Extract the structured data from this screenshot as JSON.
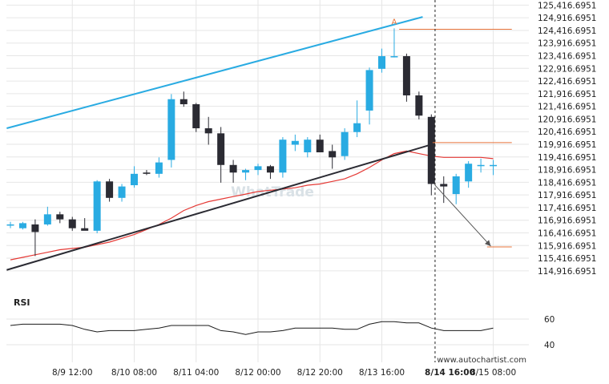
{
  "chart_data": {
    "type": "candlestick",
    "panel_label": "RSI",
    "watermark": "WhatTrade",
    "credit": "www.autochartist.com",
    "colors": {
      "bull": "#29abe2",
      "bear": "#2b2b33",
      "channel_top": "#29abe2",
      "channel_bottom": "#2b2b33",
      "moving_average": "#e53935",
      "level_lines": "#e8743b",
      "projection": "#555555",
      "grid": "#e6e6e6",
      "rsi": "#1a1a1a"
    },
    "y_axis": {
      "min": 114416.6951,
      "max": 125416.6951,
      "tick_labels": [
        "125,416.6951",
        "124,916.6951",
        "124,416.6951",
        "123,916.6951",
        "123,416.6951",
        "122,916.6951",
        "122,416.6951",
        "121,916.6951",
        "121,416.6951",
        "120,916.6951",
        "120,416.6951",
        "119,916.6951",
        "119,416.6951",
        "118,916.6951",
        "118,416.6951",
        "117,916.6951",
        "117,416.6951",
        "116,916.6951",
        "116,416.6951",
        "115,916.6951",
        "115,416.6951",
        "114,916.6951"
      ],
      "tick_values": [
        125416.6951,
        124916.6951,
        124416.6951,
        123916.6951,
        123416.6951,
        122916.6951,
        122416.6951,
        121916.6951,
        121416.6951,
        120916.6951,
        120416.6951,
        119916.6951,
        119416.6951,
        118916.6951,
        118416.6951,
        117916.6951,
        117416.6951,
        116916.6951,
        116416.6951,
        115916.6951,
        115416.6951,
        114916.6951
      ]
    },
    "x_axis": {
      "tick_labels": [
        "8/9 12:00",
        "8/10 08:00",
        "8/11 04:00",
        "8/12 00:00",
        "8/12 20:00",
        "8/13 16:00",
        "8/14 16:00",
        "8/15 08:00"
      ],
      "tick_index": [
        5,
        10,
        15,
        20,
        25,
        30,
        35.5,
        39
      ],
      "highlight_index": 6
    },
    "candles": [
      {
        "o": 116750,
        "h": 116850,
        "l": 116600,
        "c": 116750
      },
      {
        "o": 116600,
        "h": 116850,
        "l": 116550,
        "c": 116800
      },
      {
        "o": 116750,
        "h": 116950,
        "l": 115500,
        "c": 116450
      },
      {
        "o": 116750,
        "h": 117450,
        "l": 116700,
        "c": 117150
      },
      {
        "o": 117150,
        "h": 117250,
        "l": 116800,
        "c": 116950
      },
      {
        "o": 116950,
        "h": 117050,
        "l": 116500,
        "c": 116600
      },
      {
        "o": 116600,
        "h": 117000,
        "l": 116550,
        "c": 116500
      },
      {
        "o": 116500,
        "h": 118500,
        "l": 116400,
        "c": 118450
      },
      {
        "o": 118450,
        "h": 118550,
        "l": 117650,
        "c": 117800
      },
      {
        "o": 117800,
        "h": 118350,
        "l": 117650,
        "c": 118250
      },
      {
        "o": 118300,
        "h": 119050,
        "l": 118200,
        "c": 118750
      },
      {
        "o": 118800,
        "h": 118900,
        "l": 118700,
        "c": 118750
      },
      {
        "o": 118750,
        "h": 119400,
        "l": 118600,
        "c": 119200
      },
      {
        "o": 119300,
        "h": 121900,
        "l": 119000,
        "c": 121700
      },
      {
        "o": 121700,
        "h": 122000,
        "l": 121400,
        "c": 121500
      },
      {
        "o": 121500,
        "h": 121550,
        "l": 120400,
        "c": 120550
      },
      {
        "o": 120550,
        "h": 121000,
        "l": 119900,
        "c": 120350
      },
      {
        "o": 120350,
        "h": 120600,
        "l": 118400,
        "c": 119100
      },
      {
        "o": 119100,
        "h": 119300,
        "l": 118400,
        "c": 118800
      },
      {
        "o": 118800,
        "h": 118950,
        "l": 118500,
        "c": 118900
      },
      {
        "o": 118900,
        "h": 119150,
        "l": 118700,
        "c": 119050
      },
      {
        "o": 119050,
        "h": 119100,
        "l": 118550,
        "c": 118800
      },
      {
        "o": 118800,
        "h": 120200,
        "l": 118600,
        "c": 120100
      },
      {
        "o": 119900,
        "h": 120300,
        "l": 119650,
        "c": 120050
      },
      {
        "o": 119600,
        "h": 120200,
        "l": 119400,
        "c": 120100
      },
      {
        "o": 120100,
        "h": 120300,
        "l": 119600,
        "c": 119600
      },
      {
        "o": 119650,
        "h": 119900,
        "l": 118950,
        "c": 119400
      },
      {
        "o": 119450,
        "h": 120550,
        "l": 119300,
        "c": 120400
      },
      {
        "o": 120400,
        "h": 121650,
        "l": 120200,
        "c": 120750
      },
      {
        "o": 121250,
        "h": 122950,
        "l": 120700,
        "c": 122850
      },
      {
        "o": 122900,
        "h": 123700,
        "l": 122750,
        "c": 123400
      },
      {
        "o": 123400,
        "h": 124500,
        "l": 123350,
        "c": 123400
      },
      {
        "o": 123400,
        "h": 123500,
        "l": 121600,
        "c": 121850
      },
      {
        "o": 121850,
        "h": 122000,
        "l": 120900,
        "c": 121050
      },
      {
        "o": 121000,
        "h": 121100,
        "l": 117900,
        "c": 118350
      },
      {
        "o": 118350,
        "h": 118650,
        "l": 117600,
        "c": 118250
      },
      {
        "o": 117950,
        "h": 118750,
        "l": 117550,
        "c": 118650
      },
      {
        "o": 118450,
        "h": 119250,
        "l": 118200,
        "c": 119150
      },
      {
        "o": 119100,
        "h": 119350,
        "l": 118800,
        "c": 119100
      },
      {
        "o": 119100,
        "h": 119300,
        "l": 118700,
        "c": 119100
      }
    ],
    "moving_average": [
      115350,
      115450,
      115550,
      115650,
      115750,
      115800,
      115850,
      115950,
      116050,
      116200,
      116350,
      116550,
      116750,
      117000,
      117300,
      117500,
      117650,
      117750,
      117850,
      117950,
      118050,
      118100,
      118150,
      118200,
      118300,
      118350,
      118450,
      118550,
      118750,
      119000,
      119300,
      119550,
      119650,
      119550,
      119450,
      119400,
      119400,
      119400,
      119400,
      119350
    ],
    "rsi": {
      "axis_labels": [
        "60",
        "40"
      ],
      "axis_values": [
        60,
        40
      ],
      "min": 30,
      "max": 70,
      "values": [
        55,
        56,
        56,
        56,
        56,
        55,
        52,
        50,
        51,
        51,
        51,
        52,
        53,
        55,
        55,
        55,
        55,
        51,
        50,
        48,
        50,
        50,
        51,
        53,
        53,
        53,
        53,
        52,
        52,
        56,
        58,
        58,
        57,
        57,
        53,
        51,
        51,
        51,
        51,
        53
      ]
    },
    "channel_top": [
      {
        "i": -0.3,
        "v": 120550
      },
      {
        "i": 33.3,
        "v": 124950
      }
    ],
    "channel_bottom": [
      {
        "i": -0.3,
        "v": 114950
      },
      {
        "i": 34.3,
        "v": 119950
      }
    ],
    "level_lines": [
      {
        "from": 31.4,
        "to": 40.5,
        "v": 124465
      },
      {
        "from": 34.1,
        "to": 40.5,
        "v": 119985
      },
      {
        "from": 38.5,
        "to": 40.5,
        "v": 115860
      }
    ],
    "projection": {
      "from": {
        "i": 34.3,
        "v": 118300
      },
      "to": {
        "i": 38.8,
        "v": 115890
      }
    },
    "marker": {
      "i": 31,
      "v": 124660,
      "label": "A"
    },
    "vline_index": 34.3
  }
}
